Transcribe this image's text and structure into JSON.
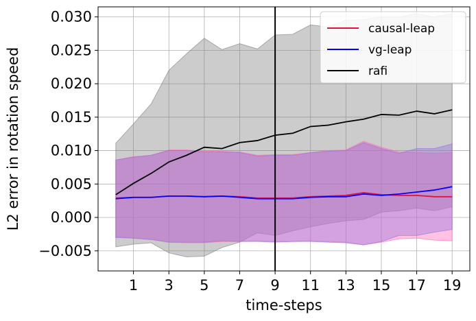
{
  "chart_data": {
    "type": "line",
    "title": "",
    "xlabel": "time-steps",
    "ylabel": "L2 error in rotation speed",
    "xlim": [
      -1,
      20
    ],
    "ylim": [
      -0.008,
      0.0315
    ],
    "xticks": [
      1,
      3,
      5,
      7,
      9,
      11,
      13,
      15,
      17,
      19
    ],
    "yticks": [
      -0.005,
      0.0,
      0.005,
      0.01,
      0.015,
      0.02,
      0.025,
      0.03
    ],
    "ytick_labels": [
      "−0.005",
      "0.000",
      "0.005",
      "0.010",
      "0.015",
      "0.020",
      "0.025",
      "0.030"
    ],
    "grid": true,
    "legend_position": "top-right",
    "vline_x": 9,
    "x": [
      0,
      1,
      2,
      3,
      4,
      5,
      6,
      7,
      8,
      9,
      10,
      11,
      12,
      13,
      14,
      15,
      16,
      17,
      18,
      19
    ],
    "series": [
      {
        "name": "causal-leap",
        "color": "#dc143c",
        "band_color": "#ff69b4",
        "values": [
          0.0029,
          0.003,
          0.003,
          0.0032,
          0.0032,
          0.0031,
          0.0032,
          0.0031,
          0.0029,
          0.0029,
          0.0029,
          0.0031,
          0.0032,
          0.0033,
          0.0037,
          0.0034,
          0.0033,
          0.0033,
          0.0031,
          0.0031
        ],
        "upper": [
          0.0086,
          0.0091,
          0.0093,
          0.0101,
          0.0101,
          0.0099,
          0.0099,
          0.0098,
          0.0093,
          0.0094,
          0.0094,
          0.0097,
          0.01,
          0.0101,
          0.0114,
          0.0105,
          0.0098,
          0.0097,
          0.0096,
          0.0097
        ],
        "lower": [
          -0.0029,
          -0.0031,
          -0.0033,
          -0.0037,
          -0.0038,
          -0.0038,
          -0.0036,
          -0.0036,
          -0.0035,
          -0.0036,
          -0.0036,
          -0.0035,
          -0.0036,
          -0.0037,
          -0.0041,
          -0.0037,
          -0.0032,
          -0.0031,
          -0.0034,
          -0.0035
        ]
      },
      {
        "name": "vg-leap",
        "color": "#0000ff",
        "band_color": "#9370db",
        "values": [
          0.0028,
          0.003,
          0.003,
          0.0032,
          0.0032,
          0.0031,
          0.0032,
          0.003,
          0.0028,
          0.0028,
          0.0028,
          0.003,
          0.0031,
          0.0031,
          0.0035,
          0.0033,
          0.0035,
          0.0038,
          0.0041,
          0.0046
        ],
        "upper": [
          0.0086,
          0.009,
          0.0093,
          0.01,
          0.01,
          0.0098,
          0.0098,
          0.0097,
          0.0092,
          0.0093,
          0.0093,
          0.0097,
          0.0099,
          0.01,
          0.0112,
          0.0103,
          0.0096,
          0.0103,
          0.0103,
          0.011
        ],
        "lower": [
          -0.003,
          -0.0031,
          -0.0033,
          -0.0037,
          -0.0037,
          -0.0037,
          -0.0035,
          -0.0036,
          -0.0036,
          -0.0037,
          -0.0036,
          -0.0036,
          -0.0037,
          -0.0038,
          -0.0041,
          -0.0036,
          -0.0027,
          -0.0027,
          -0.0022,
          -0.0018
        ]
      },
      {
        "name": "rafi",
        "color": "#000000",
        "band_color": "#808080",
        "values": [
          0.0034,
          0.0051,
          0.0066,
          0.0083,
          0.0093,
          0.0105,
          0.0103,
          0.0112,
          0.0115,
          0.0123,
          0.0126,
          0.0136,
          0.0138,
          0.0143,
          0.0147,
          0.0154,
          0.0153,
          0.0159,
          0.0155,
          0.0161
        ],
        "upper": [
          0.0111,
          0.014,
          0.017,
          0.022,
          0.0245,
          0.0268,
          0.0251,
          0.026,
          0.0252,
          0.0273,
          0.0274,
          0.0288,
          0.0285,
          0.0295,
          0.0296,
          0.03,
          0.03,
          0.0305,
          0.03,
          0.0305
        ],
        "lower": [
          -0.0044,
          -0.004,
          -0.0038,
          -0.0053,
          -0.0059,
          -0.0058,
          -0.0045,
          -0.0037,
          -0.0023,
          -0.0027,
          -0.002,
          -0.0014,
          -0.0009,
          -0.0005,
          -0.0003,
          0.0008,
          0.001,
          0.0014,
          0.001,
          0.0016
        ]
      }
    ]
  }
}
